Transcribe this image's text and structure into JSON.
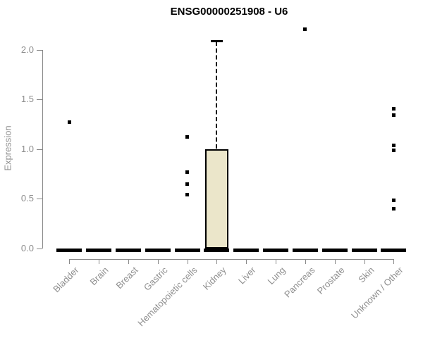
{
  "title": "ENSG00000251908 - U6",
  "colors": {
    "box_fill": "#ebe6ca",
    "box_stroke": "#000000",
    "axis": "#898989",
    "axis_text": "#8f8f8f",
    "title_text": "#000000",
    "background": "#ffffff"
  },
  "chart_data": {
    "type": "boxplot",
    "title": "ENSG00000251908 - U6",
    "xlabel": "",
    "ylabel": "Expression",
    "ylim": [
      0,
      2.25
    ],
    "yticks": [
      0.0,
      0.5,
      1.0,
      1.5,
      2.0
    ],
    "grid": false,
    "legend": null,
    "categories": [
      "Bladder",
      "Brain",
      "Breast",
      "Gastric",
      "Hematopoietic cells",
      "Kidney",
      "Liver",
      "Lung",
      "Pancreas",
      "Prostate",
      "Skin",
      "Unknown / Other"
    ],
    "boxes": [
      {
        "category": "Bladder",
        "low": 0,
        "q1": 0,
        "median": 0,
        "q3": 0,
        "high": 0,
        "outliers": [
          1.27
        ]
      },
      {
        "category": "Brain",
        "low": 0,
        "q1": 0,
        "median": 0,
        "q3": 0,
        "high": 0,
        "outliers": []
      },
      {
        "category": "Breast",
        "low": 0,
        "q1": 0,
        "median": 0,
        "q3": 0,
        "high": 0,
        "outliers": []
      },
      {
        "category": "Gastric",
        "low": 0,
        "q1": 0,
        "median": 0,
        "q3": 0,
        "high": 0,
        "outliers": []
      },
      {
        "category": "Hematopoietic cells",
        "low": 0,
        "q1": 0,
        "median": 0,
        "q3": 0,
        "high": 0,
        "outliers": [
          1.12,
          0.77,
          0.65,
          0.54
        ]
      },
      {
        "category": "Kidney",
        "low": 0,
        "q1": 0,
        "median": 0,
        "q3": 1.0,
        "high": 2.09,
        "outliers": []
      },
      {
        "category": "Liver",
        "low": 0,
        "q1": 0,
        "median": 0,
        "q3": 0,
        "high": 0,
        "outliers": []
      },
      {
        "category": "Lung",
        "low": 0,
        "q1": 0,
        "median": 0,
        "q3": 0,
        "high": 0,
        "outliers": []
      },
      {
        "category": "Pancreas",
        "low": 0,
        "q1": 0,
        "median": 0,
        "q3": 0,
        "high": 0,
        "outliers": [
          2.21
        ]
      },
      {
        "category": "Prostate",
        "low": 0,
        "q1": 0,
        "median": 0,
        "q3": 0,
        "high": 0,
        "outliers": []
      },
      {
        "category": "Skin",
        "low": 0,
        "q1": 0,
        "median": 0,
        "q3": 0,
        "high": 0,
        "outliers": []
      },
      {
        "category": "Unknown / Other",
        "low": 0,
        "q1": 0,
        "median": 0,
        "q3": 0,
        "high": 0,
        "outliers": [
          1.41,
          1.34,
          1.04,
          0.99,
          0.48,
          0.4
        ]
      }
    ]
  }
}
